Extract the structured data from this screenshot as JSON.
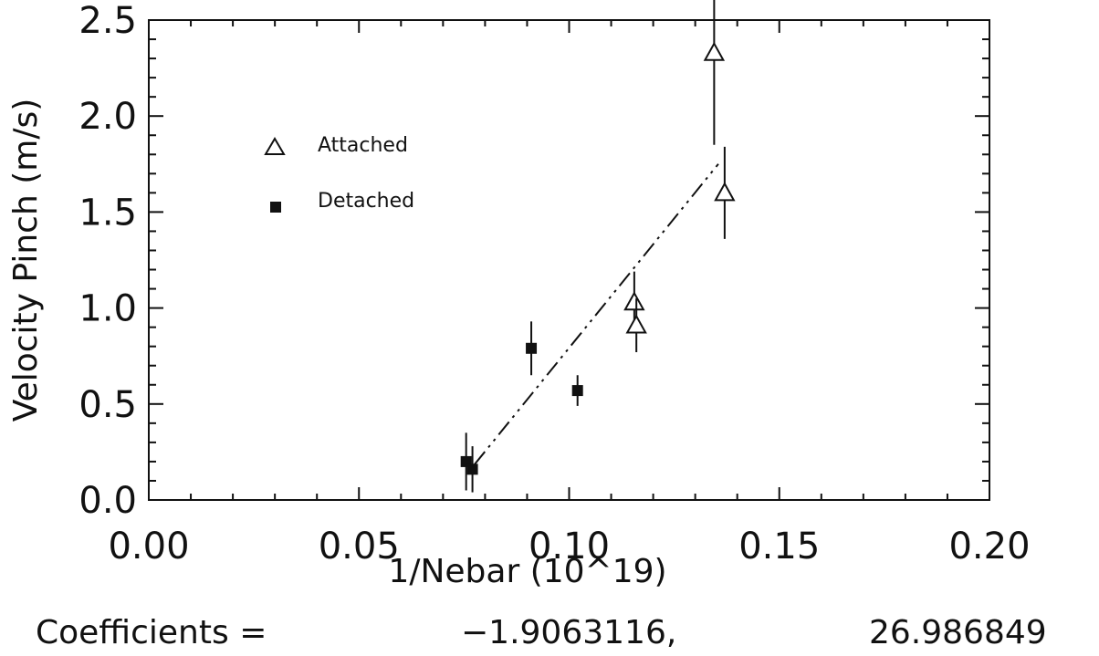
{
  "chart_data": {
    "type": "scatter",
    "xlabel": "1/Nebar (10^19)",
    "ylabel": "Velocity Pinch (m/s)",
    "xlim": [
      0.0,
      0.2
    ],
    "ylim": [
      0.0,
      2.5
    ],
    "x_ticks": [
      0.0,
      0.05,
      0.1,
      0.15,
      0.2
    ],
    "x_tick_labels": [
      "0.00",
      "0.05",
      "0.10",
      "0.15",
      "0.20"
    ],
    "y_ticks": [
      0.0,
      0.5,
      1.0,
      1.5,
      2.0,
      2.5
    ],
    "y_tick_labels": [
      "0.0",
      "0.5",
      "1.0",
      "1.5",
      "2.0",
      "2.5"
    ],
    "grid": false,
    "legend_position": "upper-left",
    "series": [
      {
        "name": "Attached",
        "marker": "open-triangle",
        "points": [
          {
            "x": 0.1345,
            "y": 2.33,
            "err": 0.48
          },
          {
            "x": 0.137,
            "y": 1.6,
            "err": 0.24
          },
          {
            "x": 0.1155,
            "y": 1.03,
            "err": 0.16
          },
          {
            "x": 0.116,
            "y": 0.91,
            "err": 0.14
          }
        ]
      },
      {
        "name": "Detached",
        "marker": "filled-square",
        "points": [
          {
            "x": 0.091,
            "y": 0.79,
            "err": 0.14
          },
          {
            "x": 0.102,
            "y": 0.57,
            "err": 0.08
          },
          {
            "x": 0.0755,
            "y": 0.2,
            "err": 0.15
          },
          {
            "x": 0.077,
            "y": 0.16,
            "err": 0.12
          }
        ]
      }
    ],
    "fit_line": {
      "style": "dash-dot",
      "x_range": [
        0.0775,
        0.1355
      ],
      "intercept": -1.9063116,
      "slope": 26.986849
    },
    "annotation": {
      "label": "Coefficients =",
      "value1": "−1.9063116,",
      "value2": "26.986849"
    },
    "colors": {
      "ink": "#111111",
      "background": "#ffffff"
    }
  }
}
